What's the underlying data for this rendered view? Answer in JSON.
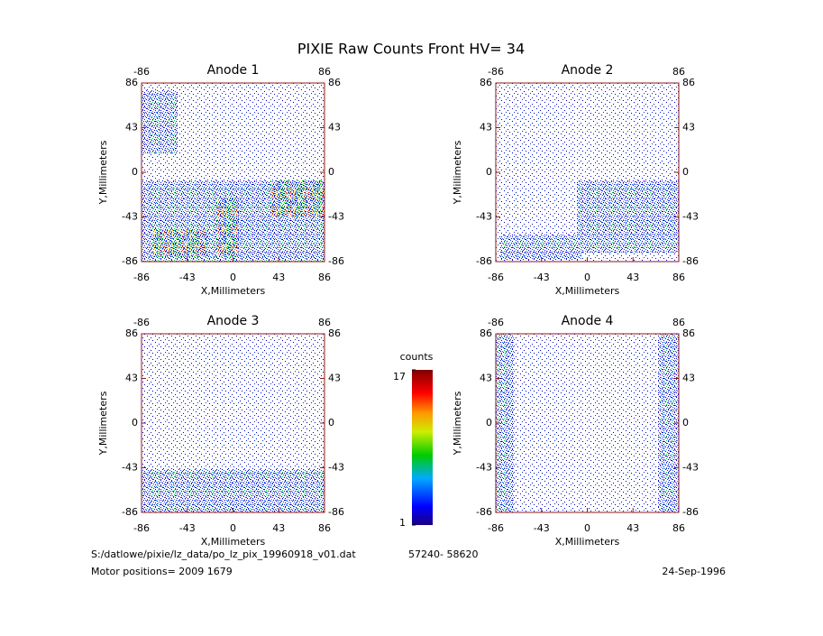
{
  "title": "PIXIE Raw Counts Front HV= 34",
  "chart_data": [
    {
      "type": "heatmap",
      "title": "Anode 1",
      "xlabel": "X,Millimeters",
      "ylabel": "Y,Millimeters",
      "xlim": [
        -86,
        86
      ],
      "xticks": [
        -86,
        -43,
        0,
        43,
        86
      ],
      "ylim": [
        -86,
        86
      ],
      "yticks": [
        -86,
        -43,
        0,
        43,
        86
      ],
      "x2lim": [
        -86,
        86
      ],
      "x2ticks": [
        -86,
        86
      ],
      "y2lim": [
        -86,
        86
      ],
      "y2ticks": [
        -86,
        -43,
        0,
        43,
        86
      ]
    },
    {
      "type": "heatmap",
      "title": "Anode 2",
      "xlabel": "X,Millimeters",
      "ylabel": "Y,Millimeters",
      "xlim": [
        -86,
        86
      ],
      "xticks": [
        -86,
        -43,
        0,
        43,
        86
      ],
      "ylim": [
        -86,
        86
      ],
      "yticks": [
        -86,
        -43,
        0,
        43,
        86
      ],
      "x2lim": [
        -86,
        86
      ],
      "x2ticks": [
        -86,
        86
      ],
      "y2lim": [
        -86,
        86
      ],
      "y2ticks": [
        -86,
        -43,
        0,
        43,
        86
      ]
    },
    {
      "type": "heatmap",
      "title": "Anode 3",
      "xlabel": "X,Millimeters",
      "ylabel": "Y,Millimeters",
      "xlim": [
        -86,
        86
      ],
      "xticks": [
        -86,
        -43,
        0,
        43,
        86
      ],
      "ylim": [
        -86,
        86
      ],
      "yticks": [
        -86,
        -43,
        0,
        43,
        86
      ],
      "x2lim": [
        -86,
        86
      ],
      "x2ticks": [
        -86,
        86
      ],
      "y2lim": [
        -86,
        86
      ],
      "y2ticks": [
        -86,
        -43,
        0,
        43,
        86
      ]
    },
    {
      "type": "heatmap",
      "title": "Anode 4",
      "xlabel": "X,Millimeters",
      "ylabel": "Y,Millimeters",
      "xlim": [
        -86,
        86
      ],
      "xticks": [
        -86,
        -43,
        0,
        43,
        86
      ],
      "ylim": [
        -86,
        86
      ],
      "yticks": [
        -86,
        -43,
        0,
        43,
        86
      ],
      "x2lim": [
        -86,
        86
      ],
      "x2ticks": [
        -86,
        86
      ],
      "y2lim": [
        -86,
        86
      ],
      "y2ticks": [
        -86,
        -43,
        0,
        43,
        86
      ]
    }
  ],
  "colorbar": {
    "label": "counts",
    "lim": [
      1,
      17
    ],
    "ticks": [
      1,
      17
    ]
  },
  "footer": {
    "file": "S:/datlowe/pixie/lz_data/po_lz_pix_19960918_v01.dat",
    "range": "57240- 58620",
    "motor": "Motor positions= 2009 1679",
    "date": "24-Sep-1996"
  }
}
